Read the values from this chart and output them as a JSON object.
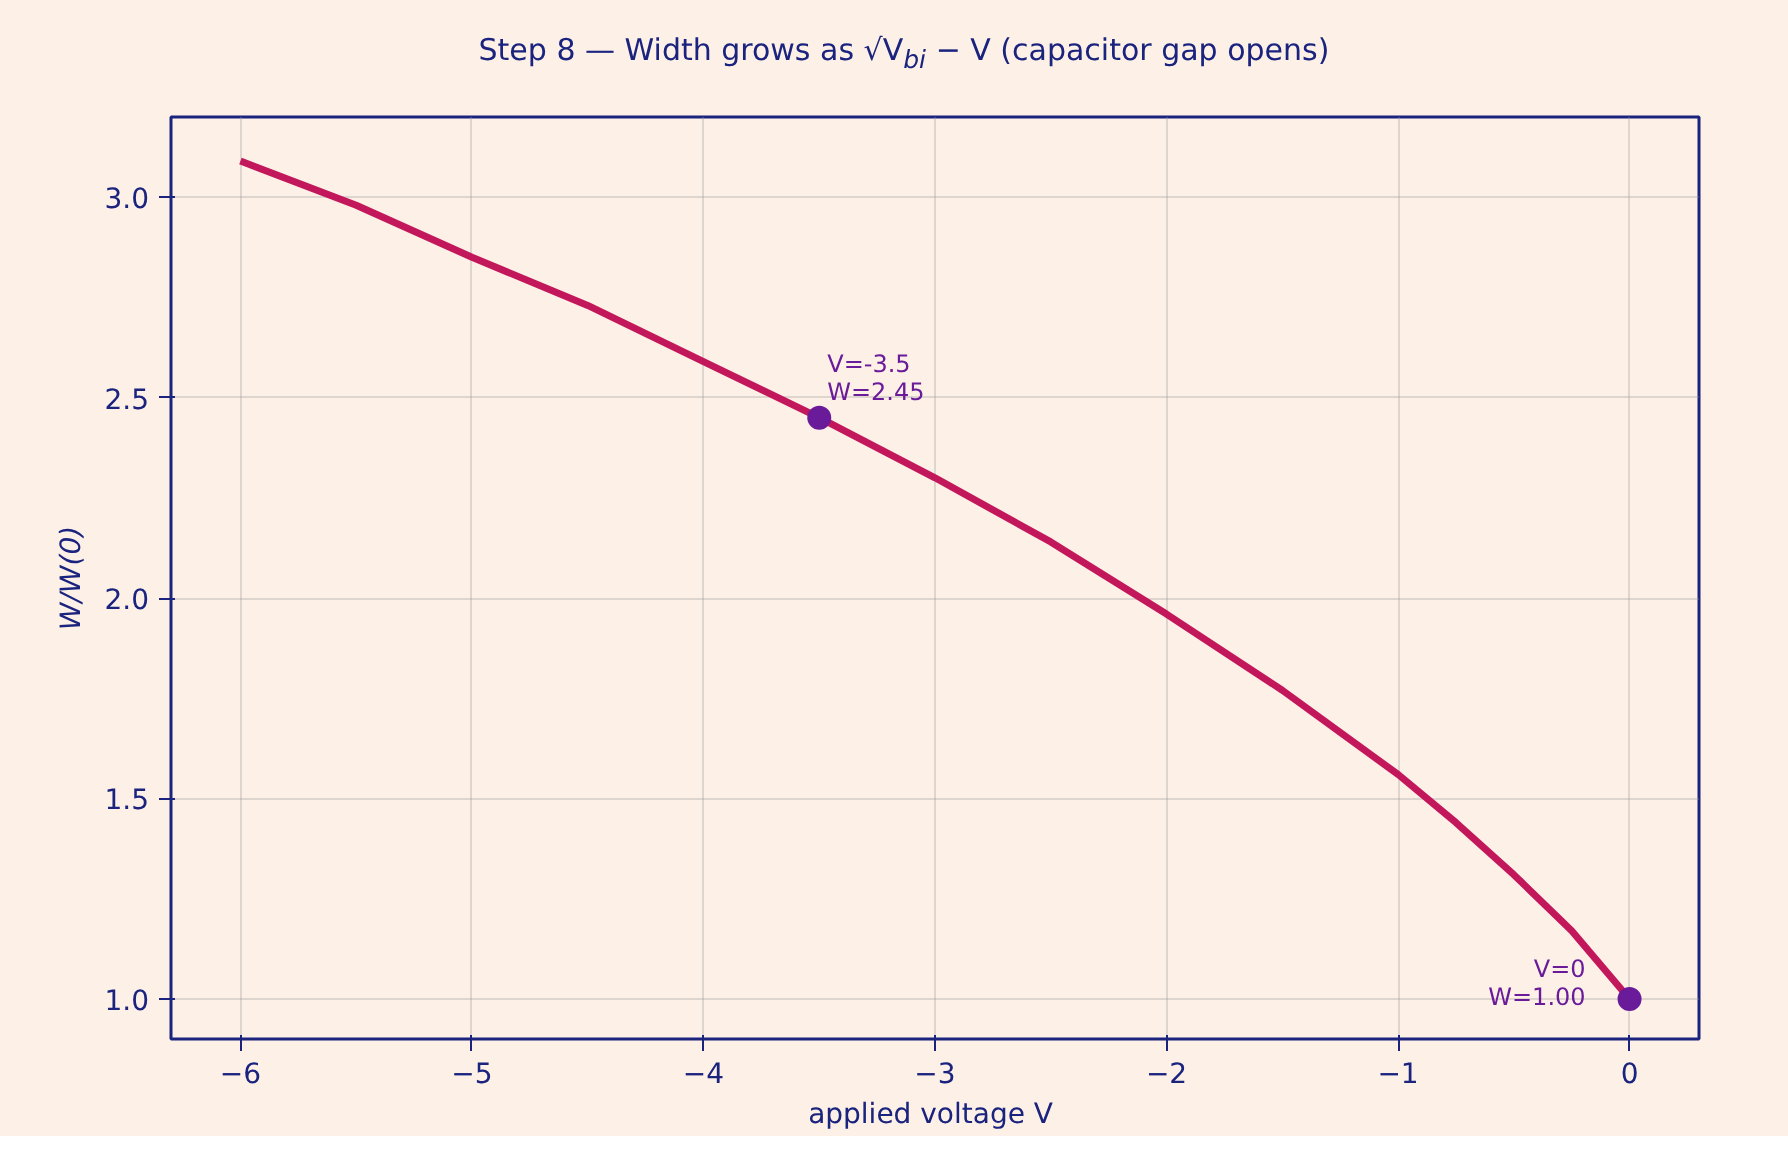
{
  "chart_data": {
    "type": "line",
    "title": "Step 8 — Width grows as √V$_{bi}$ − V (capacitor gap opens)",
    "xlabel": "applied voltage  V",
    "ylabel": "W/W(0)",
    "series": [
      {
        "color": "#c2185b",
        "x": [
          -6,
          -5.5,
          -5,
          -4.5,
          -4,
          -3.5,
          -3,
          -2.5,
          -2,
          -1.5,
          -1,
          -0.75,
          -0.5,
          -0.25,
          0
        ],
        "values": [
          3.09,
          2.98,
          2.85,
          2.73,
          2.59,
          2.45,
          2.3,
          2.14,
          1.96,
          1.77,
          1.56,
          1.44,
          1.31,
          1.17,
          1.0
        ]
      },
      {
        "type": "scatter",
        "color": "#6a1b9a",
        "x": [
          -3.5,
          0
        ],
        "values": [
          2.45,
          1.0
        ]
      }
    ],
    "annotations": [
      {
        "text": "V=-3.5\nW=2.45",
        "x": -3.5,
        "y": 2.45
      },
      {
        "text": "V=0\nW=1.00",
        "x": 0,
        "y": 1.0
      }
    ],
    "xlim": [
      -6.3,
      0.3
    ],
    "ylim": [
      0.9,
      3.2
    ],
    "xticks": [
      {
        "value": -6,
        "label": "−6"
      },
      {
        "value": -5,
        "label": "−5"
      },
      {
        "value": -4,
        "label": "−4"
      },
      {
        "value": -3,
        "label": "−3"
      },
      {
        "value": -2,
        "label": "−2"
      },
      {
        "value": -1,
        "label": "−1"
      },
      0
    ],
    "yticks": [
      {
        "value": 1,
        "label": "1.0"
      },
      1.5,
      {
        "value": 2,
        "label": "2.0"
      },
      2.5,
      {
        "value": 3,
        "label": "3.0"
      }
    ],
    "grid": true
  }
}
